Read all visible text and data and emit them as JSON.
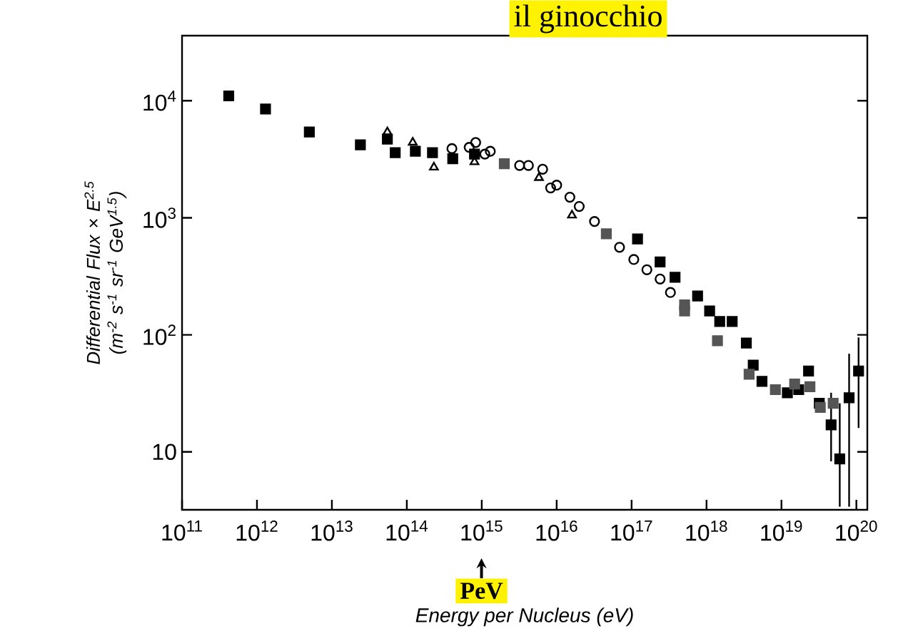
{
  "chart_data": {
    "type": "scatter",
    "title": "il ginocchio",
    "xlabel": "Energy per Nucleus (eV)",
    "ylabel": "Differential Flux × E$^{2.5}$ (m$^{-2}$ s$^{-1}$ sr$^{-1}$ GeV$^{1.5}$)",
    "log": "xy",
    "grid": false,
    "xlim": [
      100000000000.0,
      1.4e+20
    ],
    "ylim": [
      3.2,
      36000
    ],
    "xticks": [
      {
        "value": 100000000000.0,
        "label": "10$^{11}$"
      },
      {
        "value": 1000000000000.0,
        "label": "10$^{12}$"
      },
      {
        "value": 10000000000000.0,
        "label": "10$^{13}$"
      },
      {
        "value": 100000000000000.0,
        "label": "10$^{14}$"
      },
      {
        "value": 1000000000000000.0,
        "label": "10$^{15}$"
      },
      {
        "value": 1e+16,
        "label": "10$^{16}$"
      },
      {
        "value": 1e+17,
        "label": "10$^{17}$"
      },
      {
        "value": 1e+18,
        "label": "10$^{18}$"
      },
      {
        "value": 1e+19,
        "label": "10$^{19}$"
      },
      {
        "value": 1e+20,
        "label": "10$^{20}$"
      }
    ],
    "yticks": [
      10,
      {
        "value": 100,
        "label": "10$^{2}$"
      },
      {
        "value": 1000,
        "label": "10$^{3}$"
      },
      {
        "value": 10000,
        "label": "10$^{4}$"
      }
    ],
    "annotations": [
      "PeV"
    ],
    "series": [
      {
        "color": "#000000",
        "marker": "square",
        "x": [
          420000000000.0,
          1300000000000.0,
          5000000000000.0,
          24000000000000.0,
          55000000000000.0,
          70000000000000.0,
          130000000000000.0,
          220000000000000.0,
          410000000000000.0,
          800000000000000.0,
          1.2e+17,
          2.4e+17,
          3.8e+17,
          7.6e+17,
          1.1e+18,
          1.5e+18,
          2.2e+18,
          3.4e+18,
          4.2e+18,
          5.5e+18,
          1.2e+19,
          1.7e+19,
          2.3e+19,
          3.2e+19,
          4.6e+19,
          6e+19,
          8e+19,
          1.07e+20
        ],
        "values": [
          11000,
          8500,
          5400,
          4200,
          4700,
          3600,
          3700,
          3600,
          3200,
          3500,
          660,
          420,
          310,
          215,
          160,
          130,
          130,
          85,
          55,
          40,
          32,
          34,
          49,
          26,
          17,
          8.7,
          29,
          49
        ],
        "errors": [
          null,
          null,
          null,
          null,
          null,
          null,
          null,
          null,
          null,
          null,
          null,
          null,
          null,
          null,
          null,
          null,
          null,
          null,
          null,
          null,
          null,
          null,
          null,
          null,
          [
            8.3,
            32
          ],
          [
            3.4,
            26
          ],
          [
            3.4,
            69
          ],
          [
            16,
            95
          ]
        ]
      },
      {
        "color": "#000000",
        "marker": "circle",
        "x": [
          400000000000000.0,
          680000000000000.0,
          830000000000000.0,
          1100000000000000.0,
          1300000000000000.0,
          3200000000000000.0,
          4200000000000000.0,
          6500000000000000.0,
          8300000000000000.0,
          1e+16,
          1.5e+16,
          2e+16,
          3.2e+16,
          6.9e+16,
          1.07e+17,
          1.6e+17,
          2.4e+17,
          3.3e+17
        ],
        "values": [
          3900,
          4000,
          4400,
          3500,
          3700,
          2800,
          2800,
          2600,
          1800,
          1900,
          1500,
          1250,
          930,
          560,
          440,
          360,
          300,
          230
        ]
      },
      {
        "color": "#000000",
        "marker": "triangle",
        "x": [
          55000000000000.0,
          120000000000000.0,
          230000000000000.0,
          800000000000000.0,
          5800000000000000.0,
          1.6e+16
        ],
        "values": [
          5400,
          4400,
          2700,
          3000,
          2200,
          1050
        ]
      },
      {
        "color": "#555555",
        "marker": "square",
        "x": [
          2000000000000000.0,
          4.6e+16,
          5.1e+17,
          5.1e+17,
          1.4e+18,
          3.7e+18,
          8.3e+18,
          1.5e+19,
          2.4e+19,
          3.3e+19,
          4.9e+19
        ],
        "values": [
          2900,
          730,
          180,
          160,
          89,
          46,
          34,
          38,
          36,
          24,
          26
        ]
      }
    ]
  }
}
